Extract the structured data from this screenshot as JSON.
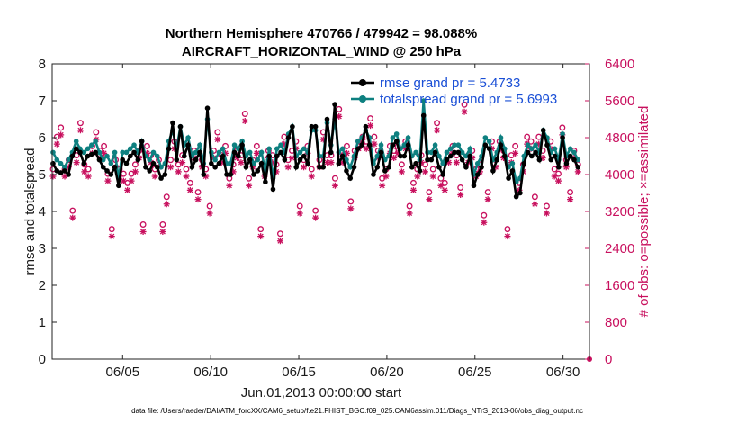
{
  "chart_data": {
    "type": "line",
    "title_line1": "Northern Hemisphere 470766 / 479942 = 98.088%",
    "title_line2": "AIRCRAFT_HORIZONTAL_WIND @ 250 hPa",
    "xlabel": "Jun.01,2013 00:00:00 start",
    "ylabel_left": "rmse and totalspread",
    "ylabel_right": "# of obs: o=possible; ×=assimilated",
    "footnote": "data file: /Users/raeder/DAI/ATM_forcXX/CAM6_setup/f.e21.FHIST_BGC.f09_025.CAM6assim.011/Diags_NTrS_2013-06/obs_diag_output.nc",
    "xlim": [
      1,
      31.5
    ],
    "ylim_left": [
      0,
      8
    ],
    "ylim_right": [
      0,
      6400
    ],
    "x_ticks": [
      5,
      10,
      15,
      20,
      25,
      30
    ],
    "x_tick_labels": [
      "06/05",
      "06/10",
      "06/15",
      "06/20",
      "06/25",
      "06/30"
    ],
    "y_ticks_left": [
      "0",
      "1",
      "2",
      "3",
      "4",
      "5",
      "6",
      "7",
      "8"
    ],
    "y_ticks_right": [
      "0",
      "800",
      "1600",
      "2400",
      "3200",
      "4000",
      "4800",
      "5600",
      "6400"
    ],
    "colors": {
      "rmse": "#000000",
      "spread": "#0e8080",
      "obs": "#c8105e",
      "legend_text": "#1a4fd6"
    },
    "series": [
      {
        "name": "rmse grand pr = 5.4733",
        "values": [
          5.3,
          5.1,
          5.05,
          5.1,
          5.0,
          5.5,
          5.7,
          5.6,
          5.3,
          5.5,
          5.55,
          5.6,
          5.4,
          5.2,
          5.1,
          5.0,
          5.2,
          4.7,
          5.4,
          5.3,
          5.5,
          5.6,
          5.4,
          5.9,
          5.2,
          5.1,
          5.3,
          5.2,
          4.9,
          5.0,
          5.7,
          6.4,
          5.4,
          6.3,
          5.5,
          5.8,
          5.2,
          5.4,
          5.6,
          5.0,
          6.8,
          5.3,
          5.2,
          5.3,
          5.5,
          5.0,
          5.0,
          5.6,
          5.5,
          5.8,
          5.2,
          5.4,
          5.0,
          5.1,
          5.3,
          4.8,
          5.5,
          4.6,
          5.5,
          5.6,
          5.4,
          6.0,
          6.3,
          5.2,
          5.4,
          5.5,
          5.3,
          6.3,
          6.3,
          5.2,
          5.2,
          6.5,
          5.6,
          6.9,
          5.3,
          5.5,
          5.1,
          4.9,
          5.2,
          5.7,
          5.8,
          6.3,
          5.8,
          5.0,
          5.2,
          5.6,
          5.1,
          5.2,
          5.8,
          5.9,
          5.5,
          5.5,
          5.8,
          5.2,
          5.3,
          5.1,
          6.6,
          5.4,
          5.4,
          5.6,
          5.2,
          5.0,
          5.4,
          5.5,
          5.6,
          5.6,
          5.4,
          5.2,
          5.5,
          4.7,
          5.0,
          5.2,
          5.8,
          5.7,
          5.1,
          5.4,
          5.8,
          5.5,
          4.9,
          5.1,
          4.4,
          4.5,
          5.3,
          5.6,
          5.5,
          5.6,
          5.4,
          6.2,
          5.8,
          5.4,
          5.5,
          5.2,
          6.0,
          5.3,
          5.5,
          5.4,
          5.2
        ],
        "style": "solid-circles"
      },
      {
        "name": "totalspread grand pr = 5.6993",
        "values": [
          5.6,
          5.4,
          5.3,
          5.2,
          5.4,
          5.6,
          5.9,
          5.7,
          5.6,
          5.7,
          5.8,
          5.9,
          5.6,
          5.4,
          5.5,
          5.3,
          5.6,
          4.9,
          5.6,
          5.6,
          5.7,
          5.8,
          5.6,
          5.9,
          5.5,
          5.4,
          5.6,
          5.5,
          5.2,
          5.3,
          5.9,
          6.2,
          5.7,
          6.3,
          5.8,
          6.0,
          5.5,
          5.6,
          5.8,
          5.3,
          6.5,
          5.6,
          5.4,
          5.6,
          5.7,
          5.3,
          5.3,
          5.8,
          5.7,
          5.9,
          5.5,
          5.6,
          5.3,
          5.4,
          5.6,
          5.1,
          5.7,
          4.9,
          5.7,
          5.8,
          5.6,
          6.1,
          6.3,
          5.5,
          5.6,
          5.7,
          5.6,
          6.2,
          6.2,
          5.5,
          5.5,
          6.4,
          5.8,
          6.5,
          5.6,
          5.7,
          5.4,
          5.2,
          5.5,
          5.9,
          6.0,
          6.2,
          6.0,
          5.3,
          5.5,
          5.8,
          5.4,
          5.5,
          6.0,
          6.1,
          5.7,
          5.8,
          6.0,
          5.5,
          5.6,
          5.4,
          7.0,
          5.6,
          5.6,
          5.8,
          5.5,
          5.3,
          5.6,
          5.7,
          5.8,
          5.8,
          5.6,
          5.5,
          5.7,
          5.0,
          5.3,
          5.5,
          6.0,
          5.9,
          5.4,
          5.6,
          6.0,
          5.7,
          5.2,
          5.3,
          4.8,
          4.9,
          5.5,
          5.8,
          5.7,
          5.8,
          5.6,
          6.2,
          6.0,
          5.6,
          5.7,
          5.4,
          6.1,
          5.5,
          5.7,
          5.6,
          5.4
        ],
        "style": "solid-circles"
      }
    ],
    "obs_counts": [
      4000,
      4700,
      4900,
      4000,
      4200,
      3100,
      4300,
      5000,
      4100,
      4000,
      4500,
      4800,
      4400,
      4500,
      3900,
      2700,
      4200,
      4000,
      3900,
      3700,
      3900,
      4100,
      4400,
      2800,
      4500,
      4300,
      4000,
      4200,
      2800,
      3400,
      4200,
      4600,
      4100,
      4300,
      4000,
      3700,
      4400,
      3500,
      4200,
      4000,
      3200,
      4400,
      4800,
      4300,
      4500,
      3800,
      4100,
      4400,
      4300,
      5200,
      3800,
      4200,
      4500,
      2700,
      4000,
      4400,
      4300,
      4100,
      2600,
      4700,
      4200,
      4400,
      4600,
      3200,
      4200,
      4500,
      4000,
      3100,
      4200,
      4800,
      4300,
      4300,
      3800,
      5300,
      4300,
      4500,
      3300,
      4400,
      4600,
      4700,
      4600,
      5100,
      4700,
      4400,
      3800,
      4000,
      4500,
      4400,
      4500,
      4100,
      4600,
      3200,
      3700,
      4000,
      4300,
      4100,
      3500,
      4000,
      5000,
      3800,
      3700,
      4300,
      4500,
      4300,
      3600,
      5400,
      4300,
      4400,
      4000,
      4100,
      3000,
      3500,
      4600,
      4200,
      4600,
      4400,
      2700,
      4300,
      4500,
      3700,
      4100,
      4700,
      4600,
      3400,
      4700,
      4400,
      3200,
      4600,
      4000,
      3900,
      4900,
      4200,
      3500,
      4400,
      4100
    ]
  }
}
